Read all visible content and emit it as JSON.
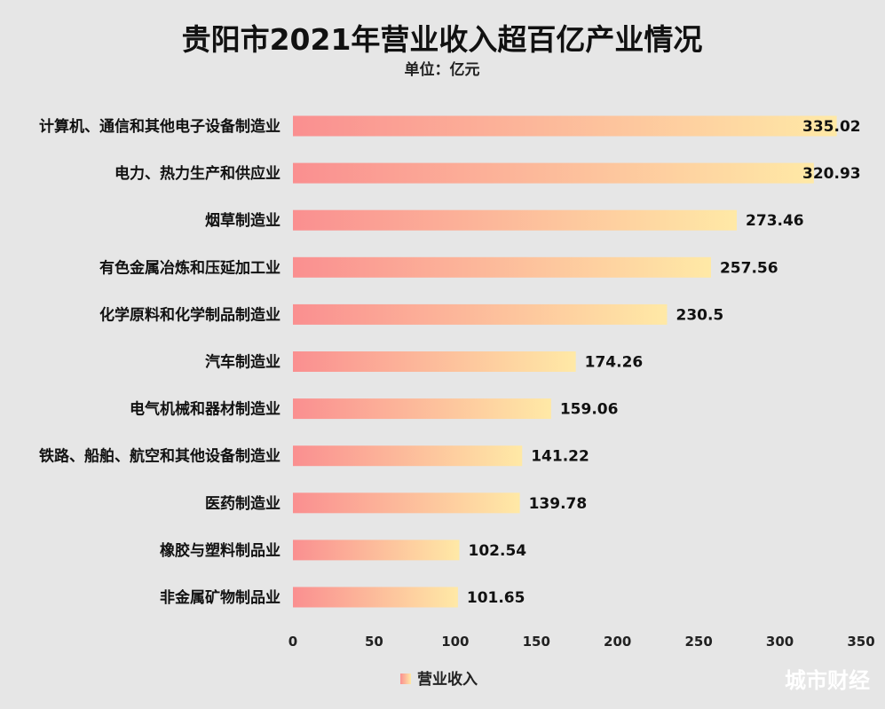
{
  "chart_data": {
    "type": "bar",
    "orientation": "horizontal",
    "title": "贵阳市2021年营业收入超百亿产业情况",
    "subtitle": "单位：亿元",
    "categories": [
      "计算机、通信和其他电子设备制造业",
      "电力、热力生产和供应业",
      "烟草制造业",
      "有色金属冶炼和压延加工业",
      "化学原料和化学制品制造业",
      "汽车制造业",
      "电气机械和器材制造业",
      "铁路、船舶、航空和其他设备制造业",
      "医药制造业",
      "橡胶与塑料制品业",
      "非金属矿物制品业"
    ],
    "series": [
      {
        "name": "营业收入",
        "values": [
          335.02,
          320.93,
          273.46,
          257.56,
          230.5,
          174.26,
          159.06,
          141.22,
          139.78,
          102.54,
          101.65
        ]
      }
    ],
    "value_labels": [
      "335.02",
      "320.93",
      "273.46",
      "257.56",
      "230.5",
      "174.26",
      "159.06",
      "141.22",
      "139.78",
      "102.54",
      "101.65"
    ],
    "xlim": [
      0,
      350
    ],
    "xticks": [
      0,
      50,
      100,
      150,
      200,
      250,
      300,
      350
    ],
    "grid": false,
    "legend_position": "bottom",
    "colors": {
      "gradient_start": "#fa8f90",
      "gradient_end": "#ffe9a6",
      "background": "#e6e6e6"
    }
  },
  "watermark": "城市财经"
}
